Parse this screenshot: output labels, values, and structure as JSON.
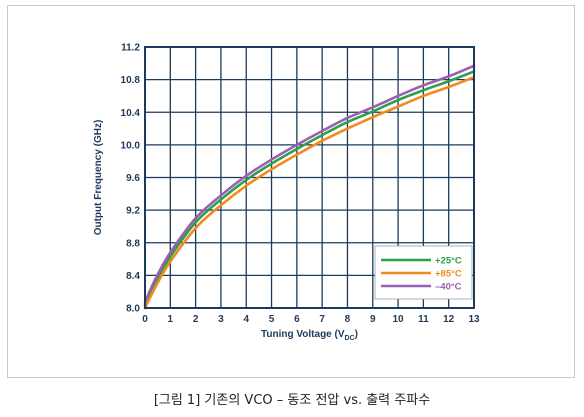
{
  "caption": "[그림 1] 기존의 VCO – 동조 전압 vs. 출력 주파수",
  "chart_data": {
    "type": "line",
    "xlabel": "Tuning Voltage (V",
    "xlabel_sub": "DC",
    "xlabel_end": ")",
    "ylabel": "Output Frequency (GHz)",
    "xlim": [
      0,
      13
    ],
    "ylim": [
      8.0,
      11.2
    ],
    "x_ticks": [
      0,
      1,
      2,
      3,
      4,
      5,
      6,
      7,
      8,
      9,
      10,
      11,
      12,
      13
    ],
    "y_ticks": [
      "8.0",
      "8.4",
      "8.8",
      "9.2",
      "9.6",
      "10.0",
      "10.4",
      "10.8",
      "11.2"
    ],
    "grid": true,
    "legend_position": "bottom-right",
    "x": [
      0,
      0.25,
      0.5,
      1,
      2,
      3,
      4,
      5,
      6,
      7,
      8,
      9,
      10,
      11,
      12,
      13
    ],
    "series": [
      {
        "name": "+25°C",
        "color": "#2e9e4a",
        "values": [
          8.03,
          8.2,
          8.36,
          8.63,
          9.05,
          9.33,
          9.57,
          9.77,
          9.95,
          10.12,
          10.28,
          10.41,
          10.55,
          10.67,
          10.78,
          10.9
        ]
      },
      {
        "name": "+85°C",
        "color": "#f28a1e",
        "values": [
          8.0,
          8.16,
          8.31,
          8.57,
          8.98,
          9.26,
          9.5,
          9.7,
          9.88,
          10.05,
          10.2,
          10.34,
          10.47,
          10.6,
          10.71,
          10.83
        ]
      },
      {
        "name": "–40°C",
        "color": "#9a5fb0",
        "values": [
          8.07,
          8.25,
          8.41,
          8.68,
          9.1,
          9.38,
          9.62,
          9.82,
          10.0,
          10.17,
          10.33,
          10.46,
          10.6,
          10.73,
          10.84,
          10.97
        ]
      }
    ],
    "colors": {
      "axis": "#1b3a5c",
      "grid": "#1b3a5c",
      "legend_border": "#8fa1b3"
    }
  }
}
